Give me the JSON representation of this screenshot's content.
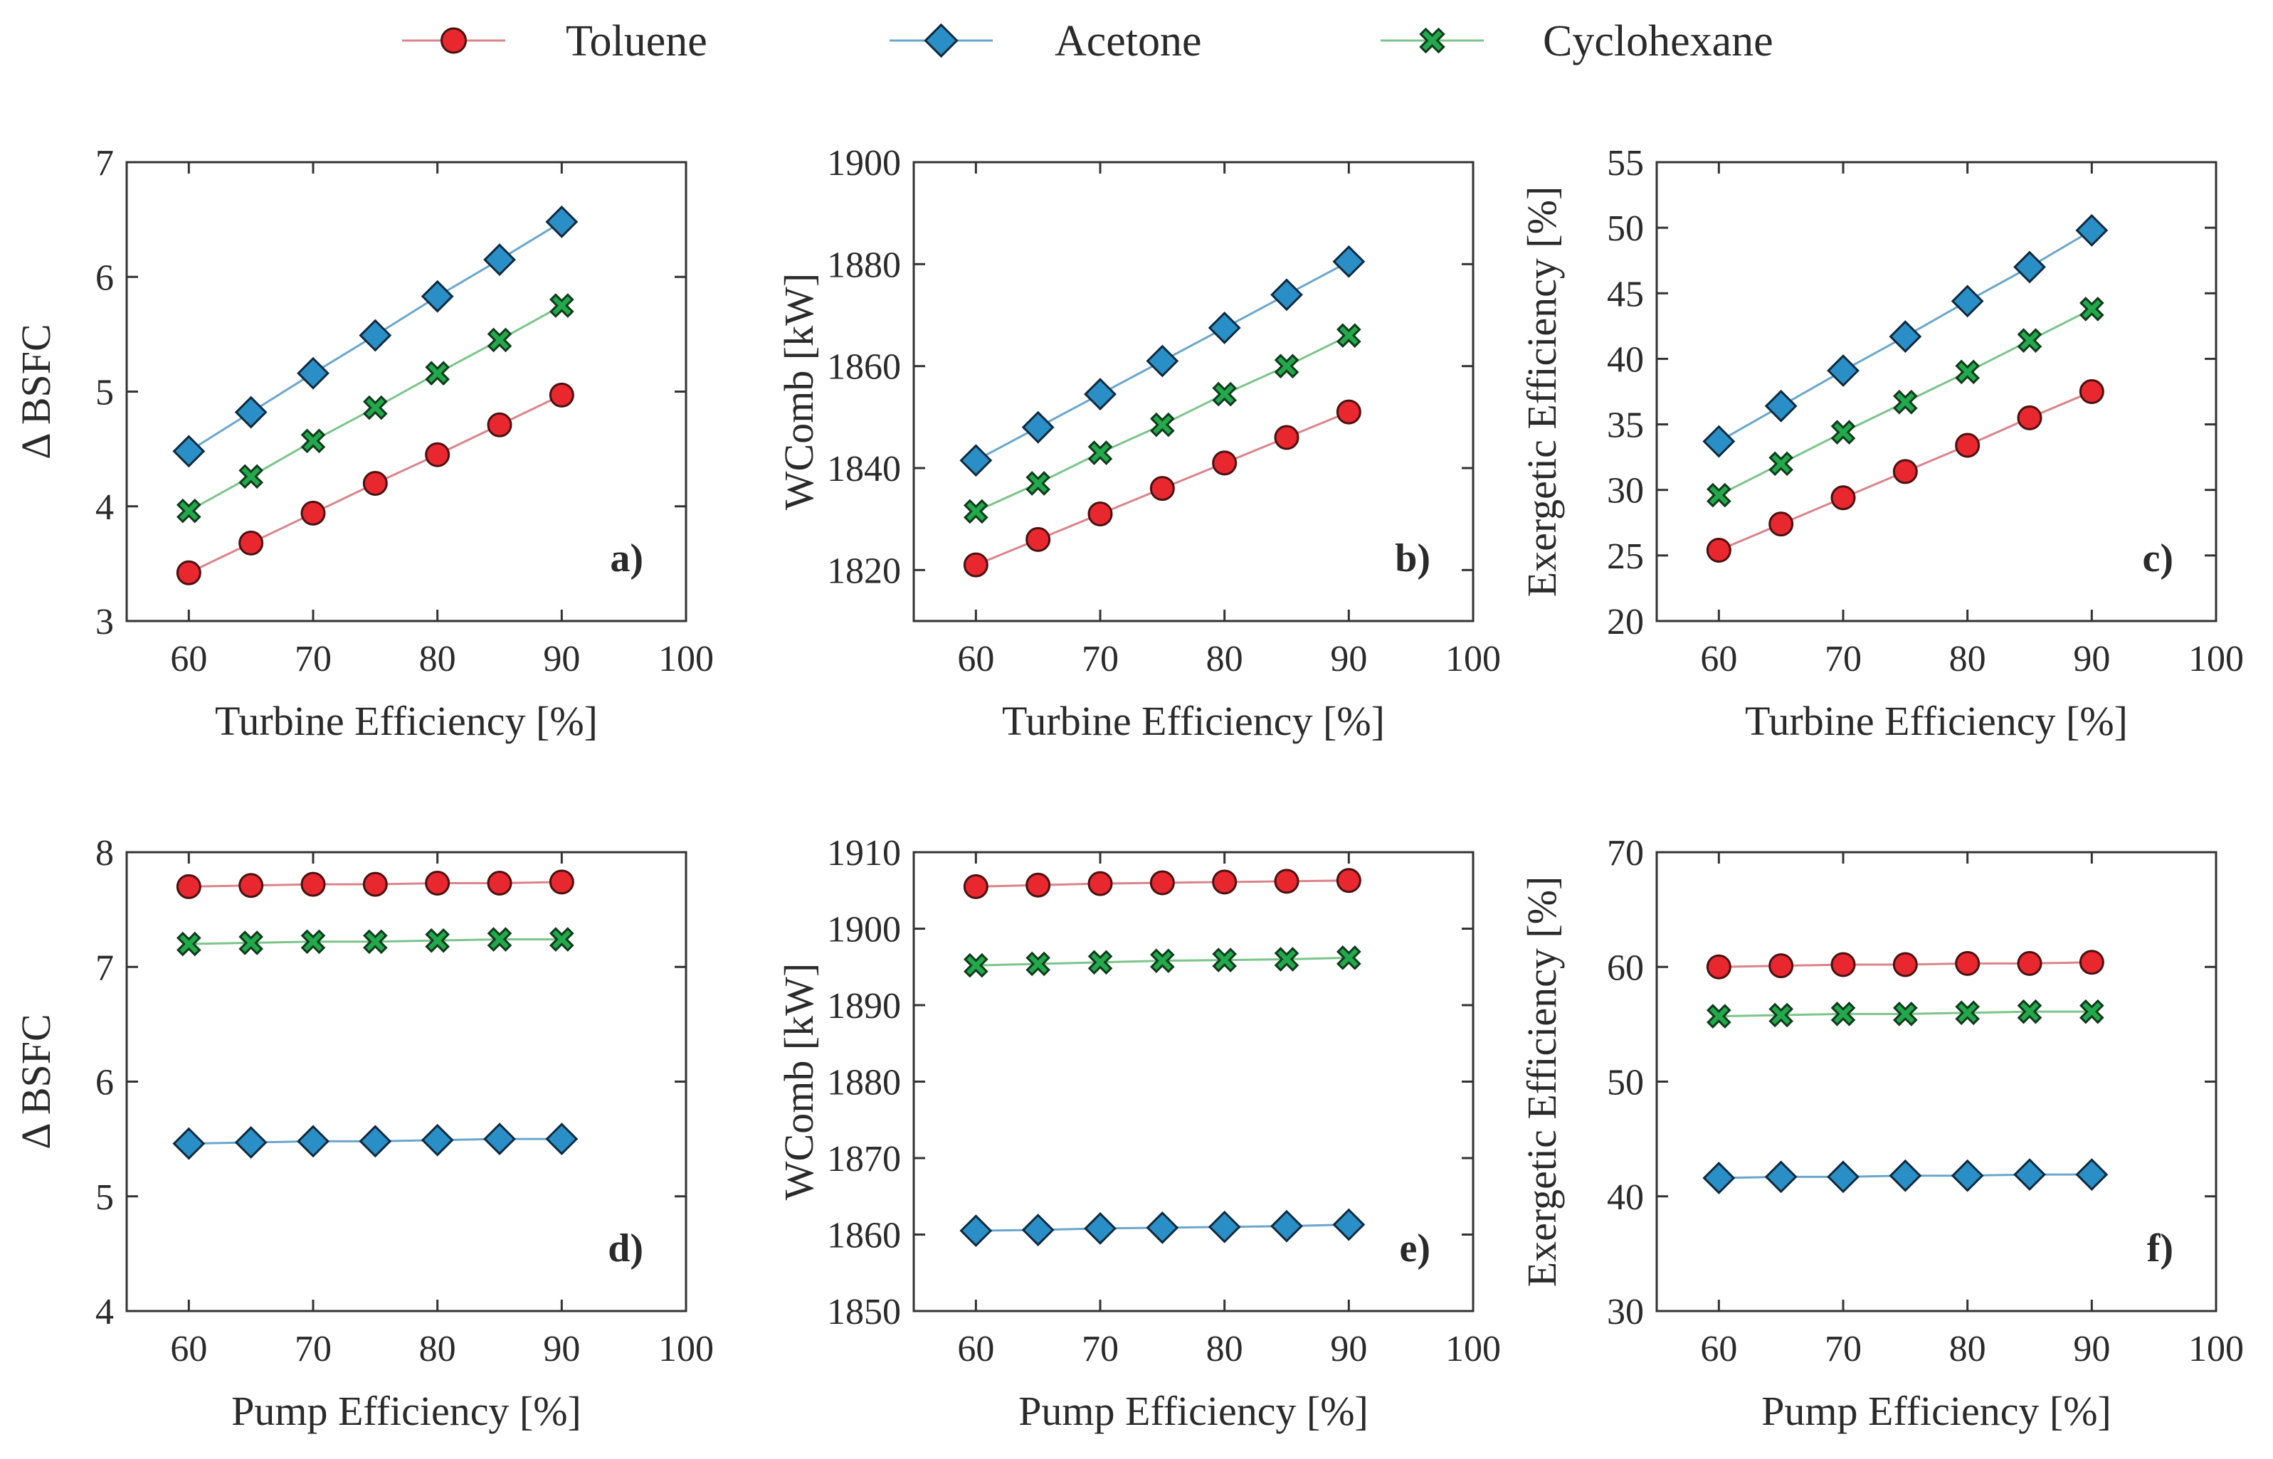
{
  "legend": [
    {
      "name": "Toluene",
      "marker": "circle",
      "color": "#e8272f",
      "line_color": "#d9848a"
    },
    {
      "name": "Acetone",
      "marker": "diamond",
      "color": "#2b8fc7",
      "line_color": "#6aa6cc"
    },
    {
      "name": "Cyclohexane",
      "marker": "cross",
      "color": "#22a94c",
      "line_color": "#7cc48a"
    }
  ],
  "chart_data": [
    {
      "type": "line",
      "panel": "a)",
      "xlabel": "Turbine Efficiency [%]",
      "ylabel": "Δ BSFC",
      "xlim": [
        55,
        100
      ],
      "ylim": [
        3,
        7
      ],
      "xticks": [
        60,
        70,
        80,
        90,
        100
      ],
      "yticks": [
        3,
        4,
        5,
        6,
        7
      ],
      "x": [
        60,
        65,
        70,
        75,
        80,
        85,
        90
      ],
      "series": [
        {
          "name": "Toluene",
          "values": [
            3.42,
            3.68,
            3.94,
            4.2,
            4.45,
            4.71,
            4.97
          ]
        },
        {
          "name": "Acetone",
          "values": [
            4.48,
            4.82,
            5.16,
            5.49,
            5.83,
            6.15,
            6.48
          ]
        },
        {
          "name": "Cyclohexane",
          "values": [
            3.96,
            4.26,
            4.57,
            4.86,
            5.16,
            5.45,
            5.75
          ]
        }
      ]
    },
    {
      "type": "line",
      "panel": "b)",
      "xlabel": "Turbine Efficiency [%]",
      "ylabel": "WComb [kW]",
      "xlim": [
        55,
        100
      ],
      "ylim": [
        1810,
        1900
      ],
      "xticks": [
        60,
        70,
        80,
        90,
        100
      ],
      "yticks": [
        1820,
        1840,
        1860,
        1880,
        1900
      ],
      "x": [
        60,
        65,
        70,
        75,
        80,
        85,
        90
      ],
      "series": [
        {
          "name": "Toluene",
          "values": [
            1821,
            1826,
            1831,
            1836,
            1841,
            1846,
            1851
          ]
        },
        {
          "name": "Acetone",
          "values": [
            1841.5,
            1848,
            1854.5,
            1861,
            1867.5,
            1874,
            1880.5
          ]
        },
        {
          "name": "Cyclohexane",
          "values": [
            1831.5,
            1837,
            1843,
            1848.5,
            1854.5,
            1860,
            1866
          ]
        }
      ]
    },
    {
      "type": "line",
      "panel": "c)",
      "xlabel": "Turbine Efficiency [%]",
      "ylabel": "Exergetic Efficiency [%]",
      "xlim": [
        55,
        100
      ],
      "ylim": [
        20,
        55
      ],
      "xticks": [
        60,
        70,
        80,
        90,
        100
      ],
      "yticks": [
        20,
        25,
        30,
        35,
        40,
        45,
        50,
        55
      ],
      "x": [
        60,
        65,
        70,
        75,
        80,
        85,
        90
      ],
      "series": [
        {
          "name": "Toluene",
          "values": [
            25.4,
            27.4,
            29.4,
            31.4,
            33.4,
            35.5,
            37.5
          ]
        },
        {
          "name": "Acetone",
          "values": [
            33.7,
            36.4,
            39.1,
            41.7,
            44.4,
            47.0,
            49.8
          ]
        },
        {
          "name": "Cyclohexane",
          "values": [
            29.6,
            32.0,
            34.4,
            36.7,
            39.0,
            41.4,
            43.8
          ]
        }
      ]
    },
    {
      "type": "line",
      "panel": "d)",
      "xlabel": "Pump Efficiency [%]",
      "ylabel": "Δ BSFC",
      "xlim": [
        55,
        100
      ],
      "ylim": [
        4,
        8
      ],
      "xticks": [
        60,
        70,
        80,
        90,
        100
      ],
      "yticks": [
        4,
        5,
        6,
        7,
        8
      ],
      "x": [
        60,
        65,
        70,
        75,
        80,
        85,
        90
      ],
      "series": [
        {
          "name": "Toluene",
          "values": [
            7.7,
            7.71,
            7.72,
            7.72,
            7.73,
            7.73,
            7.74
          ]
        },
        {
          "name": "Acetone",
          "values": [
            5.46,
            5.47,
            5.48,
            5.48,
            5.49,
            5.5,
            5.5
          ]
        },
        {
          "name": "Cyclohexane",
          "values": [
            7.2,
            7.21,
            7.22,
            7.22,
            7.23,
            7.24,
            7.24
          ]
        }
      ]
    },
    {
      "type": "line",
      "panel": "e)",
      "xlabel": "Pump Efficiency [%]",
      "ylabel": "WComb [kW]",
      "xlim": [
        55,
        100
      ],
      "ylim": [
        1850,
        1910
      ],
      "xticks": [
        60,
        70,
        80,
        90,
        100
      ],
      "yticks": [
        1850,
        1860,
        1870,
        1880,
        1890,
        1900,
        1910
      ],
      "x": [
        60,
        65,
        70,
        75,
        80,
        85,
        90
      ],
      "series": [
        {
          "name": "Toluene",
          "values": [
            1905.5,
            1905.7,
            1905.9,
            1906.0,
            1906.1,
            1906.2,
            1906.3
          ]
        },
        {
          "name": "Acetone",
          "values": [
            1860.5,
            1860.6,
            1860.8,
            1860.9,
            1861.0,
            1861.1,
            1861.3
          ]
        },
        {
          "name": "Cyclohexane",
          "values": [
            1895.2,
            1895.4,
            1895.6,
            1895.8,
            1895.9,
            1896.0,
            1896.2
          ]
        }
      ]
    },
    {
      "type": "line",
      "panel": "f)",
      "xlabel": "Pump Efficiency [%]",
      "ylabel": "Exergetic Efficiency [%]",
      "xlim": [
        55,
        100
      ],
      "ylim": [
        30,
        70
      ],
      "xticks": [
        60,
        70,
        80,
        90,
        100
      ],
      "yticks": [
        30,
        40,
        50,
        60,
        70
      ],
      "x": [
        60,
        65,
        70,
        75,
        80,
        85,
        90
      ],
      "series": [
        {
          "name": "Toluene",
          "values": [
            60.0,
            60.1,
            60.2,
            60.2,
            60.3,
            60.3,
            60.4
          ]
        },
        {
          "name": "Acetone",
          "values": [
            41.6,
            41.7,
            41.7,
            41.8,
            41.8,
            41.9,
            41.9
          ]
        },
        {
          "name": "Cyclohexane",
          "values": [
            55.7,
            55.8,
            55.9,
            55.9,
            56.0,
            56.1,
            56.1
          ]
        }
      ]
    }
  ]
}
